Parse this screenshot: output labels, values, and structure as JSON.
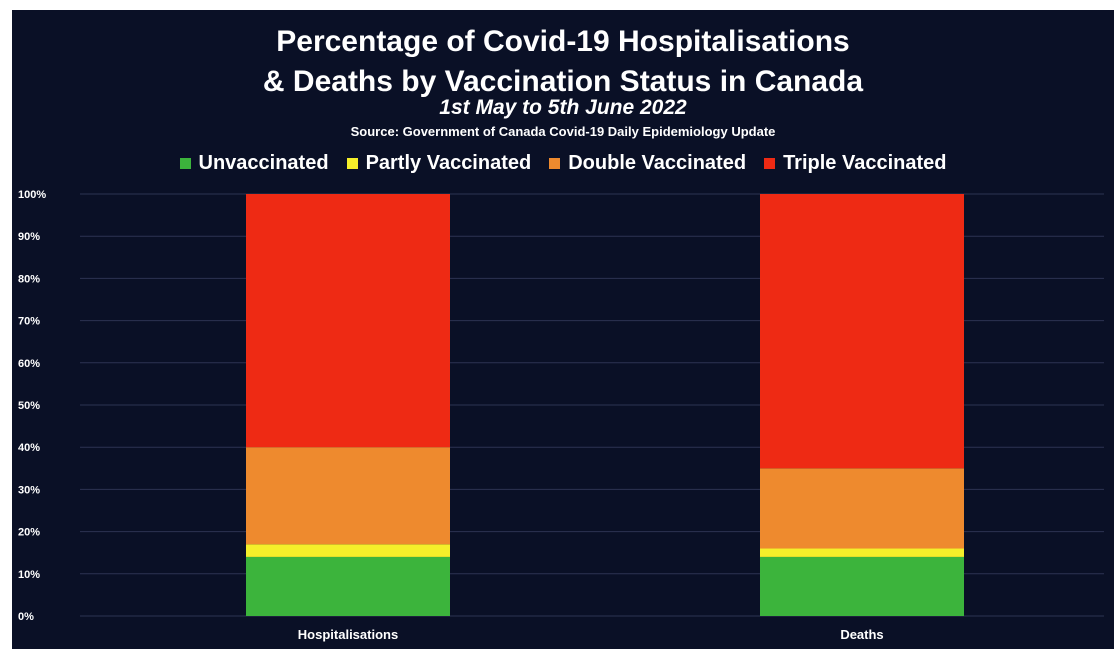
{
  "chart_data": {
    "type": "bar",
    "stacked": true,
    "title_line1": "Percentage of Covid-19 Hospitalisations",
    "title_line2": "& Deaths by Vaccination Status in Canada",
    "subtitle": "1st May to 5th June 2022",
    "source": "Source: Government of Canada Covid-19 Daily Epidemiology Update",
    "categories": [
      "Hospitalisations",
      "Deaths"
    ],
    "series": [
      {
        "name": "Unvaccinated",
        "color": "#3cb43c",
        "values": [
          14,
          14
        ]
      },
      {
        "name": "Partly Vaccinated",
        "color": "#f5ef2a",
        "values": [
          3,
          2
        ]
      },
      {
        "name": "Double Vaccinated",
        "color": "#ee8a2e",
        "values": [
          23,
          19
        ]
      },
      {
        "name": "Triple Vaccinated",
        "color": "#ee2a14",
        "values": [
          60,
          65
        ]
      }
    ],
    "yticks": [
      "0%",
      "10%",
      "20%",
      "30%",
      "40%",
      "50%",
      "60%",
      "70%",
      "80%",
      "90%",
      "100%"
    ],
    "ylim": [
      0,
      100
    ],
    "legend_position": "top",
    "grid": true,
    "background_color": "#0a1026",
    "grid_color": "#2c3352"
  }
}
